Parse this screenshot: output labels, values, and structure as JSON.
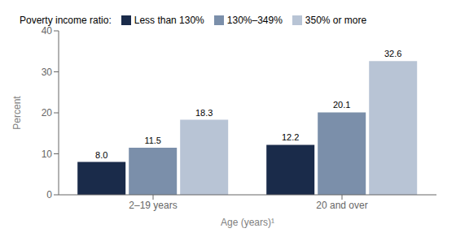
{
  "chart_data": {
    "type": "bar",
    "categories": [
      "2–19 years",
      "20 and over"
    ],
    "series": [
      {
        "name": "Less than 130%",
        "color": "#1a2b4a",
        "values": [
          8.0,
          12.2
        ],
        "value_labels": [
          "8.0",
          "12.2"
        ]
      },
      {
        "name": "130%–349%",
        "color": "#7b8faa",
        "values": [
          11.5,
          20.1
        ],
        "value_labels": [
          "11.5",
          "20.1"
        ]
      },
      {
        "name": "350% or more",
        "color": "#b8c4d5",
        "values": [
          18.3,
          32.6
        ],
        "value_labels": [
          "18.3",
          "32.6"
        ]
      }
    ],
    "legend_title": "Poverty income ratio:",
    "xlabel": "Age (years)¹",
    "ylabel": "Percent",
    "ylim": [
      0,
      40
    ],
    "yticks": [
      0,
      10,
      20,
      30,
      40
    ],
    "data_labels": true,
    "legend": "top",
    "grid": false
  }
}
